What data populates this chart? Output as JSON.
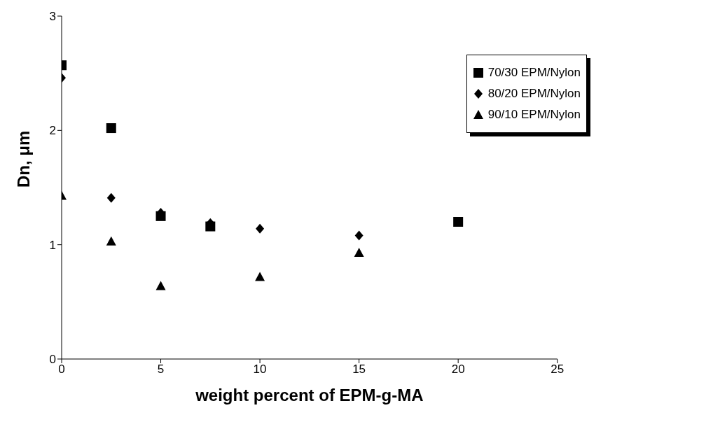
{
  "chart_data": {
    "type": "scatter",
    "xlabel": "weight percent of EPM-g-MA",
    "ylabel": "Dn, μm",
    "xlim": [
      0,
      25
    ],
    "xticks": [
      0,
      5,
      10,
      15,
      20,
      25
    ],
    "ylim": [
      0,
      3
    ],
    "yticks": [
      0,
      1,
      2,
      3
    ],
    "grid": false,
    "legend": "top right",
    "series": [
      {
        "name": "70/30 EPM/Nylon",
        "color": "#000000",
        "marker": "square",
        "x": [
          0,
          2.5,
          5,
          7.5,
          20
        ],
        "values": [
          2.57,
          2.02,
          1.25,
          1.16,
          1.2
        ]
      },
      {
        "name": "80/20 EPM/Nylon",
        "color": "#000000",
        "marker": "diamond",
        "x": [
          0,
          2.5,
          5,
          7.5,
          10,
          15
        ],
        "values": [
          2.46,
          1.41,
          1.28,
          1.19,
          1.14,
          1.08
        ]
      },
      {
        "name": "90/10 EPM/Nylon",
        "color": "#000000",
        "marker": "triangle",
        "x": [
          0,
          2.5,
          5,
          10,
          15
        ],
        "values": [
          1.43,
          1.03,
          0.64,
          0.72,
          0.93
        ]
      }
    ]
  }
}
